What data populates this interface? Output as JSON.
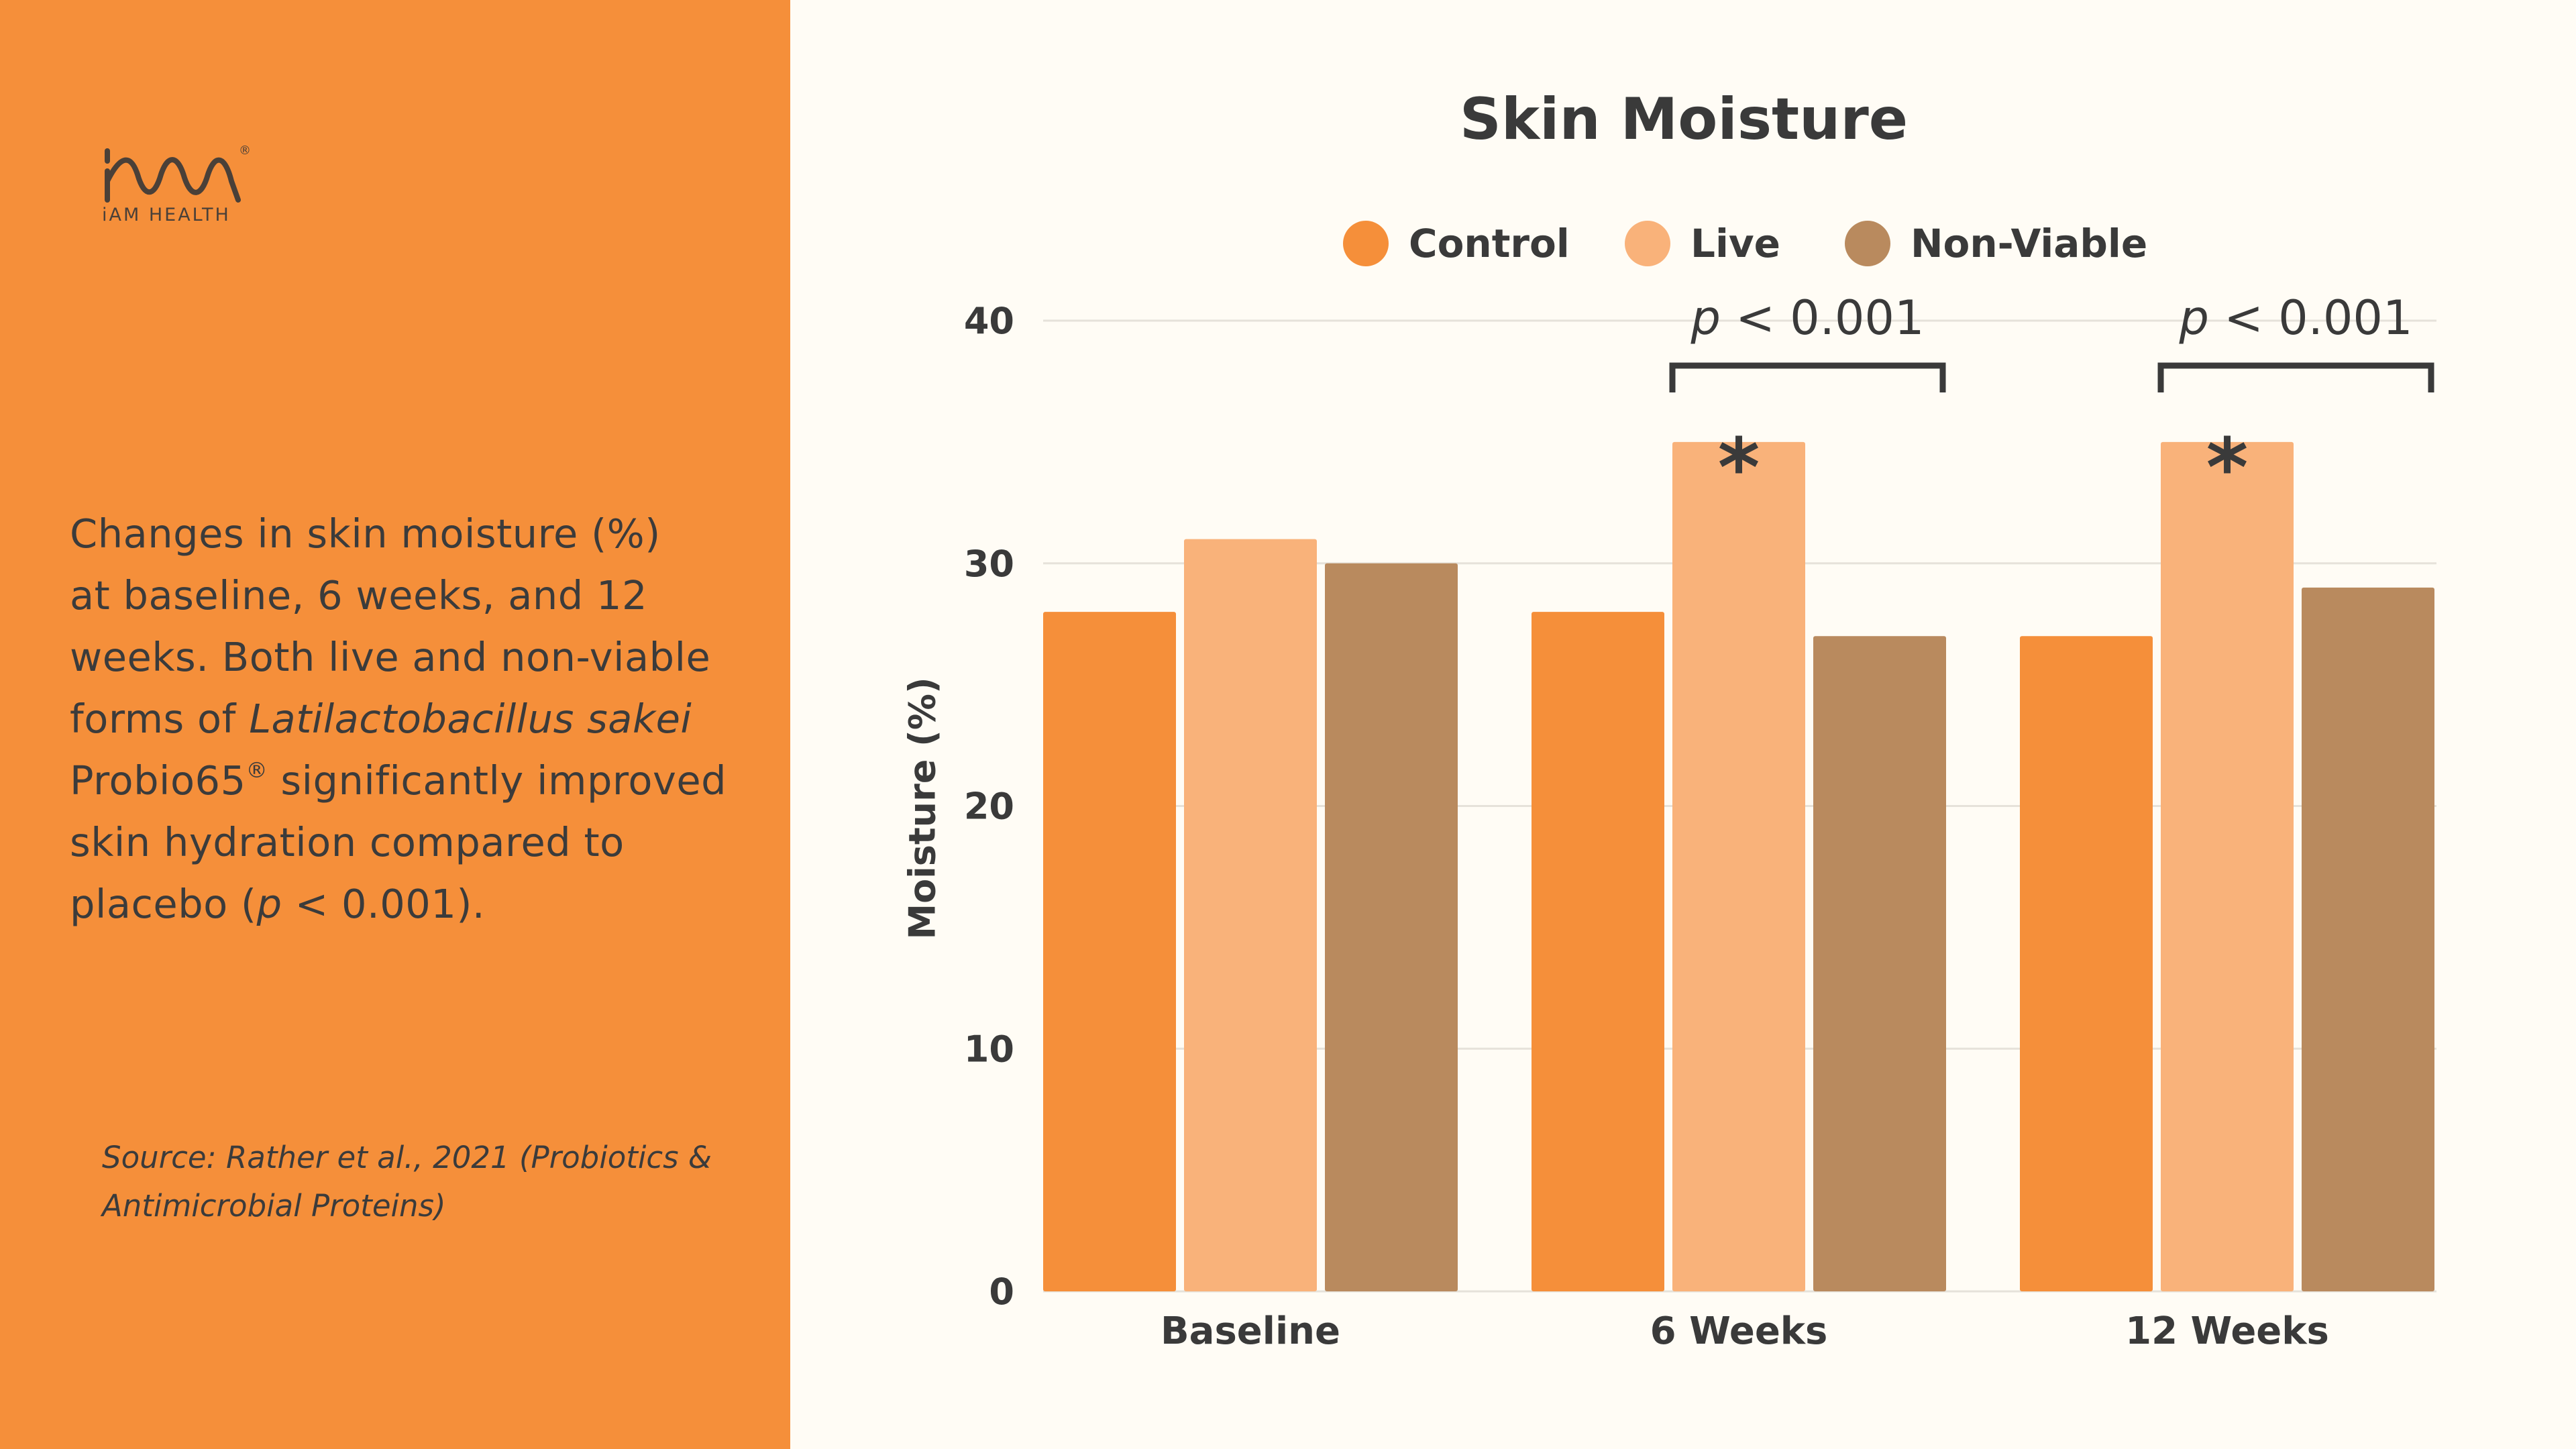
{
  "brand": {
    "name": "iAM HEALTH",
    "registered": "®"
  },
  "description": {
    "lines": [
      [
        {
          "text": "Changes in skin moisture (%)"
        }
      ],
      [
        {
          "text": "at baseline, 6 weeks, and 12"
        }
      ],
      [
        {
          "text": "weeks. Both live and non-viable"
        }
      ],
      [
        {
          "text": "forms of "
        },
        {
          "text": "Latilactobacillus sakei",
          "italic": true
        }
      ],
      [
        {
          "text": "Probio65"
        },
        {
          "text": "®",
          "sup": true
        },
        {
          "text": " significantly improved"
        }
      ],
      [
        {
          "text": "skin hydration compared to"
        }
      ],
      [
        {
          "text": "placebo ("
        },
        {
          "text": "p",
          "italic": true
        },
        {
          "text": " < 0.001)."
        }
      ]
    ]
  },
  "source": {
    "lines": [
      "Source: Rather et al., 2021 (Probiotics &",
      "Antimicrobial Proteins)"
    ]
  },
  "chart_data": {
    "type": "bar",
    "title": "Skin Moisture",
    "xlabel": "",
    "ylabel": "Moisture (%)",
    "ylim": [
      0,
      40
    ],
    "yticks": [
      0,
      10,
      20,
      30,
      40
    ],
    "grid": true,
    "legend_position": "top-center",
    "categories": [
      "Baseline",
      "6 Weeks",
      "12 Weeks"
    ],
    "series": [
      {
        "name": "Control",
        "color": "#f58f3a",
        "values": [
          28,
          28,
          27
        ]
      },
      {
        "name": "Live",
        "color": "#f9b27a",
        "values": [
          31,
          35,
          35
        ]
      },
      {
        "name": "Non-Viable",
        "color": "#b98a5e",
        "values": [
          30,
          27,
          29
        ]
      }
    ],
    "annotations": [
      {
        "category": "6 Weeks",
        "text": "p < 0.001",
        "p": "p",
        "rest": " < 0.001",
        "marker": "*",
        "marker_series": "Live"
      },
      {
        "category": "12 Weeks",
        "text": "p < 0.001",
        "p": "p",
        "rest": " < 0.001",
        "marker": "*",
        "marker_series": "Live"
      }
    ]
  }
}
